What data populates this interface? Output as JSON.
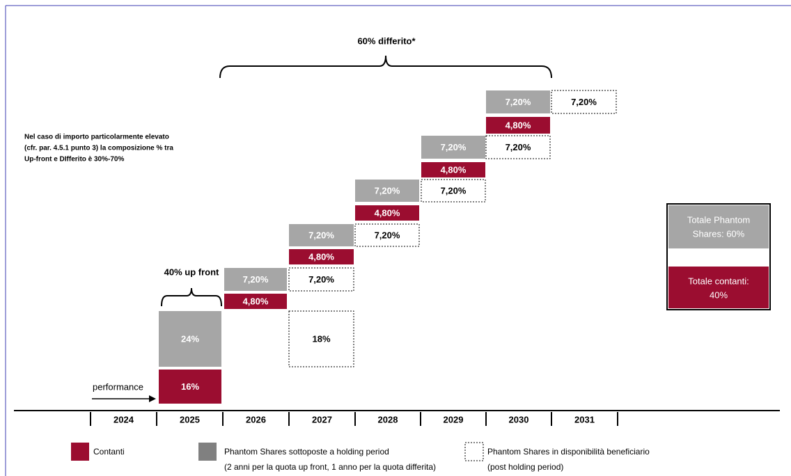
{
  "top_brace": "60% differito*",
  "left_brace": "40% up front",
  "note": [
    "Nel caso di importo particolarmente elevato",
    "(cfr. par. 4.5.1 punto 3) la composizione % tra",
    "Up-front e DIfferito è 30%-70%"
  ],
  "performance": "performance",
  "years": [
    "2024",
    "2025",
    "2026",
    "2027",
    "2028",
    "2029",
    "2030",
    "2031"
  ],
  "boxes": [
    {
      "label": "24%"
    },
    {
      "label": "16%"
    },
    {
      "label": "7,20%"
    },
    {
      "label": "4,80%"
    },
    {
      "label": "7,20%"
    },
    {
      "label": "4,80%"
    },
    {
      "label": "7,20%"
    },
    {
      "label": "18%"
    },
    {
      "label": "7,20%"
    },
    {
      "label": "4,80%"
    },
    {
      "label": "7,20%"
    },
    {
      "label": "7,20%"
    },
    {
      "label": "4,80%"
    },
    {
      "label": "7,20%"
    },
    {
      "label": "7,20%"
    },
    {
      "label": "4,80%"
    },
    {
      "label": "7,20%"
    },
    {
      "label": "7,20%"
    }
  ],
  "totals": {
    "phantom": [
      "Totale Phantom",
      "Shares: 60%"
    ],
    "cash": [
      "Totale contanti:",
      "40%"
    ]
  },
  "legend": [
    {
      "lines": [
        "Contanti"
      ]
    },
    {
      "lines": [
        "Phantom Shares sottoposte a holding period",
        "(2 anni per la quota up front, 1 anno per la quota differita)"
      ]
    },
    {
      "lines": [
        "Phantom Shares in disponibilità beneficiario",
        "(post holding period)"
      ]
    }
  ]
}
